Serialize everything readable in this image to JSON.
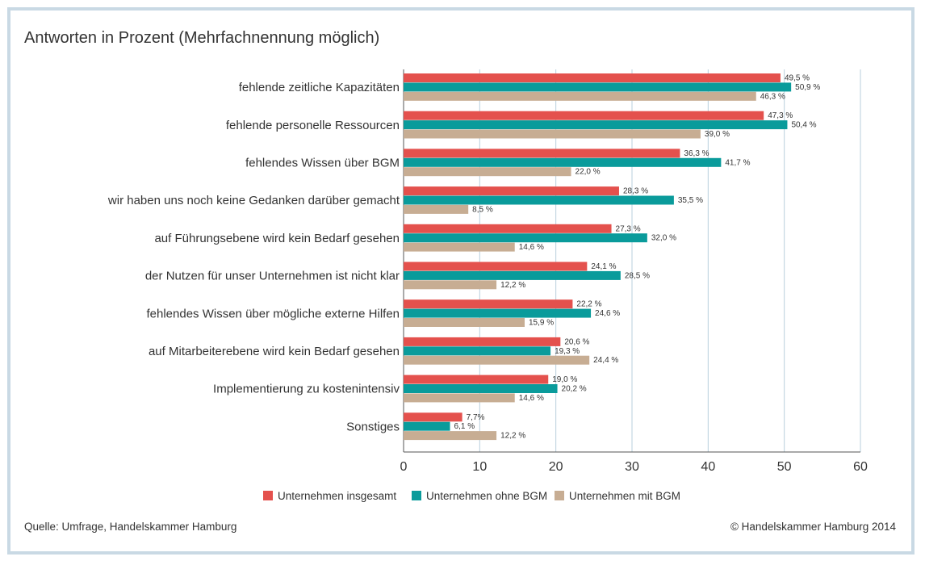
{
  "chart_data": {
    "type": "bar",
    "orientation": "horizontal",
    "title": "Antworten in Prozent (Mehrfachnennung möglich)",
    "categories": [
      "fehlende zeitliche Kapazitäten",
      "fehlende personelle Ressourcen",
      "fehlendes Wissen über BGM",
      "wir haben uns noch keine Gedanken darüber gemacht",
      "auf Führungsebene wird kein Bedarf gesehen",
      "der Nutzen für unser Unternehmen ist nicht klar",
      "fehlendes Wissen über mögliche externe Hilfen",
      "auf Mitarbeiterebene wird kein Bedarf gesehen",
      "Implementierung zu kostenintensiv",
      "Sonstiges"
    ],
    "series": [
      {
        "name": "Unternehmen insgesamt",
        "color": "#e4514d",
        "values": [
          49.5,
          47.3,
          36.3,
          28.3,
          27.3,
          24.1,
          22.2,
          20.6,
          19.0,
          7.7
        ],
        "labels": [
          "49,5 %",
          "47,3 %",
          "36,3 %",
          "28,3 %",
          "27,3 %",
          "24,1 %",
          "22,2 %",
          "20,6 %",
          "19,0 %",
          "7,7%"
        ]
      },
      {
        "name": "Unternehmen ohne BGM",
        "color": "#0a9b9b",
        "values": [
          50.9,
          50.4,
          41.7,
          35.5,
          32.0,
          28.5,
          24.6,
          19.3,
          20.2,
          6.1
        ],
        "labels": [
          "50,9 %",
          "50,4 %",
          "41,7 %",
          "35,5 %",
          "32,0 %",
          "28,5 %",
          "24,6 %",
          "19,3 %",
          "20,2 %",
          "6,1 %"
        ]
      },
      {
        "name": "Unternehmen mit BGM",
        "color": "#c7ad93",
        "values": [
          46.3,
          39.0,
          22.0,
          8.5,
          14.6,
          12.2,
          15.9,
          24.4,
          14.6,
          12.2
        ],
        "labels": [
          "46,3 %",
          "39,0 %",
          "22,0 %",
          "8,5 %",
          "14,6 %",
          "12,2 %",
          "15,9 %",
          "24,4 %",
          "14,6 %",
          "12,2 %"
        ]
      }
    ],
    "xlim": [
      0,
      60
    ],
    "xticks": [
      0,
      10,
      20,
      30,
      40,
      50,
      60
    ],
    "grid": "vertical",
    "legend": "bottom",
    "gridline_color": "#b9cfdd"
  },
  "footer": {
    "source": "Quelle: Umfrage, Handelskammer Hamburg",
    "copyright": "© Handelskammer Hamburg 2014"
  }
}
